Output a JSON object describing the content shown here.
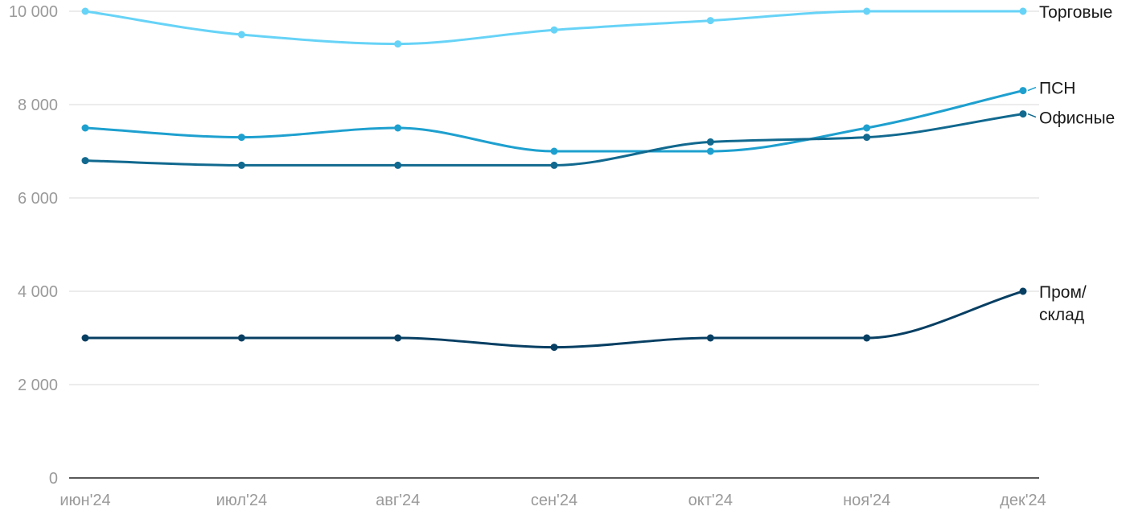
{
  "chart_data": {
    "type": "line",
    "categories": [
      "июн'24",
      "июл'24",
      "авг'24",
      "сен'24",
      "окт'24",
      "ноя'24",
      "дек'24"
    ],
    "y_ticks": [
      "0",
      "2 000",
      "4 000",
      "6 000",
      "8 000",
      "10 000"
    ],
    "ylim": [
      0,
      10000
    ],
    "grid": true,
    "legend": "inline-right",
    "series": [
      {
        "name": "Торговые",
        "color": "#67d3f7",
        "values": [
          10000,
          9500,
          9300,
          9600,
          9800,
          10000,
          10000
        ]
      },
      {
        "name": "ПСН",
        "color": "#1ea0cf",
        "values": [
          7500,
          7300,
          7500,
          7000,
          7000,
          7500,
          8300
        ]
      },
      {
        "name": "Офисные",
        "color": "#11698f",
        "values": [
          6800,
          6700,
          6700,
          6700,
          7200,
          7300,
          7800
        ]
      },
      {
        "name": "Пром/ склад",
        "color": "#073f63",
        "values": [
          3000,
          3000,
          3000,
          2800,
          3000,
          3000,
          4000
        ]
      }
    ]
  }
}
